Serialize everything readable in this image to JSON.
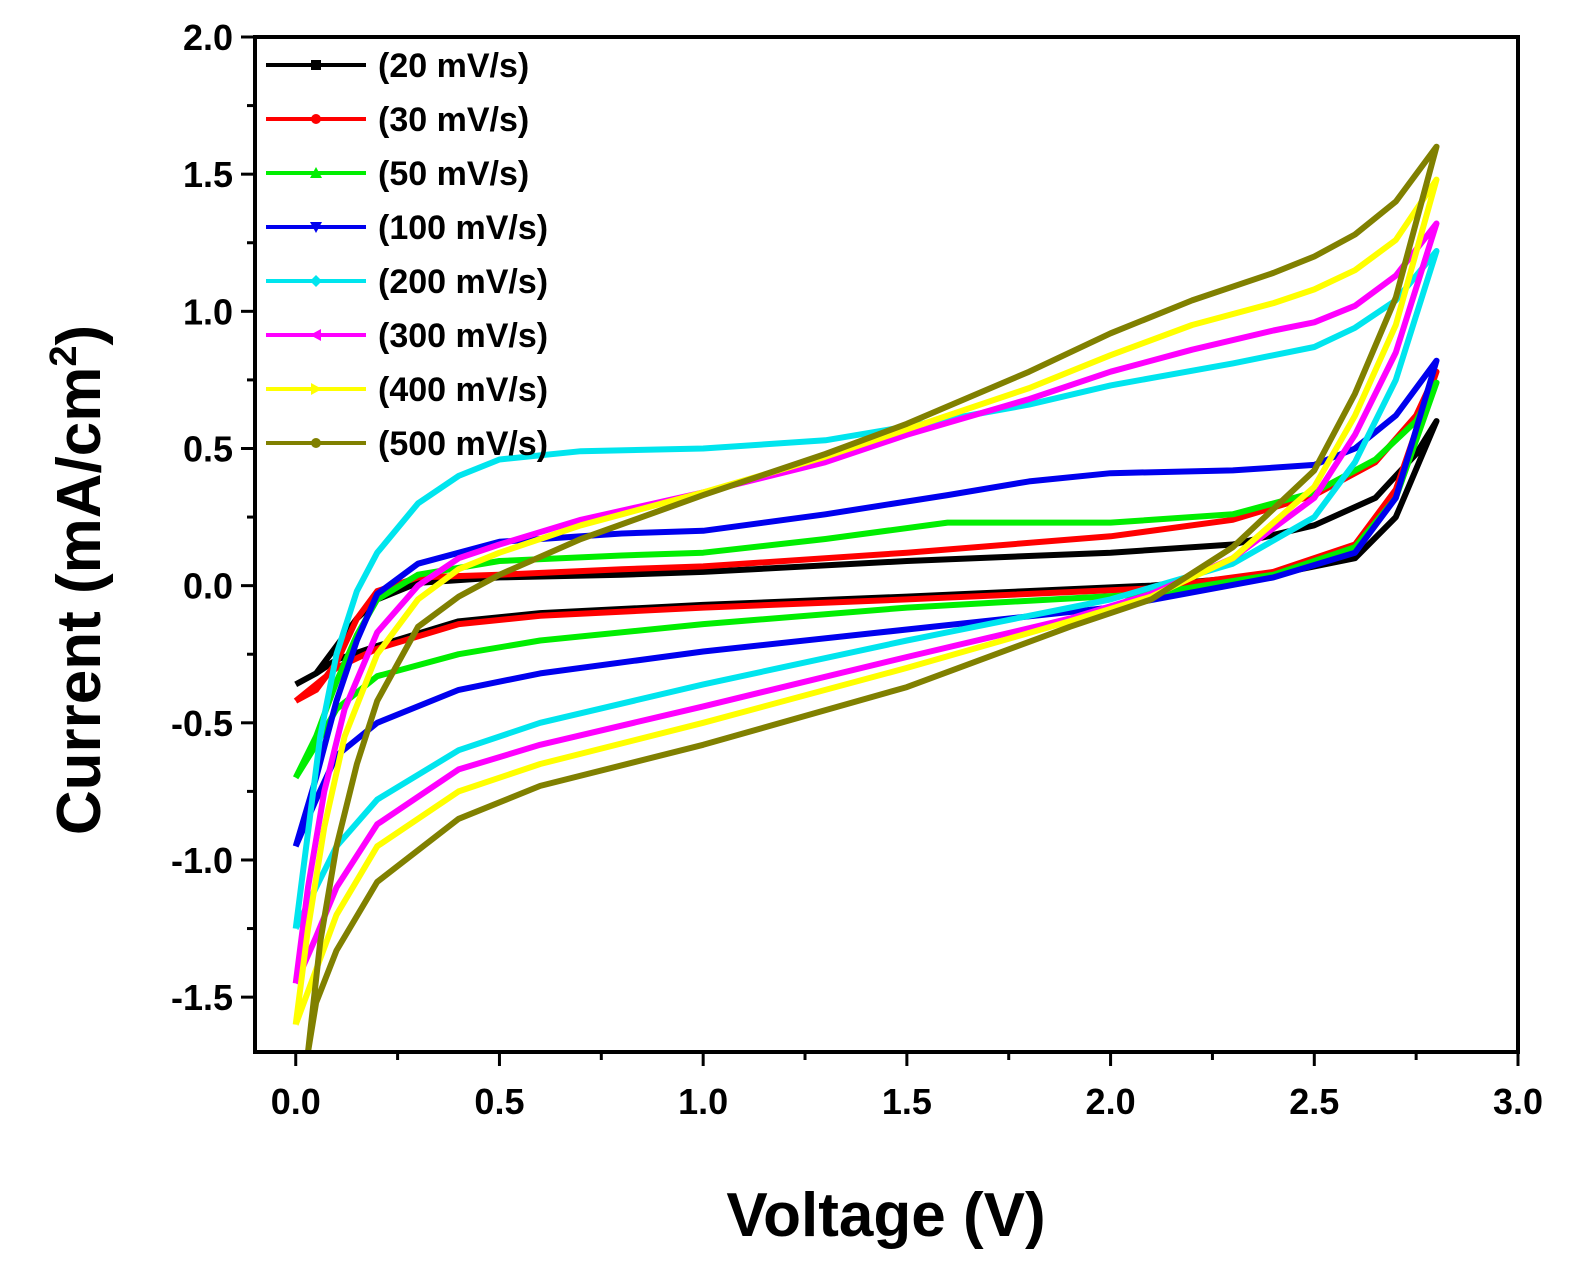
{
  "chart_data": {
    "type": "line",
    "title": "",
    "xlabel": "Voltage (V)",
    "ylabel_main": "Current (mA/cm",
    "ylabel_sup": "2",
    "ylabel_close": ")",
    "xlim": [
      -0.1,
      3.0
    ],
    "ylim": [
      -1.7,
      2.0
    ],
    "xticks": [
      0.0,
      0.5,
      1.0,
      1.5,
      2.0,
      2.5,
      3.0
    ],
    "xtick_labels": [
      "0.0",
      "0.5",
      "1.0",
      "1.5",
      "2.0",
      "2.5",
      "3.0"
    ],
    "yticks": [
      -1.5,
      -1.0,
      -0.5,
      0.0,
      0.5,
      1.0,
      1.5,
      2.0
    ],
    "ytick_labels": [
      "-1.5",
      "-1.0",
      "-0.5",
      "0.0",
      "0.5",
      "1.0",
      "1.5",
      "2.0"
    ],
    "legend_position": "top-left",
    "series": [
      {
        "name": "(20 mV/s)",
        "color": "#000000",
        "marker": "square",
        "upper": [
          [
            0.0,
            -0.36
          ],
          [
            0.05,
            -0.32
          ],
          [
            0.1,
            -0.22
          ],
          [
            0.15,
            -0.12
          ],
          [
            0.2,
            -0.05
          ],
          [
            0.3,
            0.01
          ],
          [
            0.5,
            0.03
          ],
          [
            0.8,
            0.04
          ],
          [
            1.0,
            0.05
          ],
          [
            1.5,
            0.09
          ],
          [
            2.0,
            0.12
          ],
          [
            2.3,
            0.15
          ],
          [
            2.5,
            0.22
          ],
          [
            2.65,
            0.32
          ],
          [
            2.75,
            0.48
          ],
          [
            2.8,
            0.6
          ]
        ],
        "lower": [
          [
            2.8,
            0.6
          ],
          [
            2.7,
            0.25
          ],
          [
            2.6,
            0.1
          ],
          [
            2.4,
            0.04
          ],
          [
            2.1,
            0.0
          ],
          [
            1.5,
            -0.04
          ],
          [
            1.0,
            -0.07
          ],
          [
            0.6,
            -0.1
          ],
          [
            0.4,
            -0.13
          ],
          [
            0.2,
            -0.22
          ],
          [
            0.1,
            -0.27
          ],
          [
            0.05,
            -0.32
          ],
          [
            0.0,
            -0.36
          ]
        ]
      },
      {
        "name": "(30 mV/s)",
        "color": "#ff0000",
        "marker": "circle",
        "upper": [
          [
            0.0,
            -0.42
          ],
          [
            0.05,
            -0.38
          ],
          [
            0.1,
            -0.28
          ],
          [
            0.15,
            -0.12
          ],
          [
            0.2,
            -0.02
          ],
          [
            0.3,
            0.03
          ],
          [
            0.5,
            0.04
          ],
          [
            0.8,
            0.06
          ],
          [
            1.0,
            0.07
          ],
          [
            1.5,
            0.12
          ],
          [
            2.0,
            0.18
          ],
          [
            2.3,
            0.24
          ],
          [
            2.5,
            0.33
          ],
          [
            2.65,
            0.45
          ],
          [
            2.75,
            0.62
          ],
          [
            2.8,
            0.78
          ]
        ],
        "lower": [
          [
            2.8,
            0.78
          ],
          [
            2.7,
            0.35
          ],
          [
            2.6,
            0.15
          ],
          [
            2.4,
            0.05
          ],
          [
            2.1,
            -0.01
          ],
          [
            1.5,
            -0.05
          ],
          [
            1.0,
            -0.08
          ],
          [
            0.6,
            -0.11
          ],
          [
            0.4,
            -0.14
          ],
          [
            0.2,
            -0.23
          ],
          [
            0.1,
            -0.3
          ],
          [
            0.05,
            -0.36
          ],
          [
            0.0,
            -0.42
          ]
        ]
      },
      {
        "name": "(50 mV/s)",
        "color": "#00ee00",
        "marker": "triangle-up",
        "upper": [
          [
            0.0,
            -0.7
          ],
          [
            0.05,
            -0.55
          ],
          [
            0.1,
            -0.35
          ],
          [
            0.15,
            -0.18
          ],
          [
            0.2,
            -0.05
          ],
          [
            0.3,
            0.04
          ],
          [
            0.5,
            0.09
          ],
          [
            0.8,
            0.11
          ],
          [
            1.0,
            0.12
          ],
          [
            1.3,
            0.17
          ],
          [
            1.6,
            0.23
          ],
          [
            2.0,
            0.23
          ],
          [
            2.3,
            0.26
          ],
          [
            2.5,
            0.34
          ],
          [
            2.65,
            0.46
          ],
          [
            2.75,
            0.6
          ],
          [
            2.8,
            0.74
          ]
        ],
        "lower": [
          [
            2.8,
            0.74
          ],
          [
            2.7,
            0.32
          ],
          [
            2.6,
            0.14
          ],
          [
            2.4,
            0.04
          ],
          [
            2.1,
            -0.03
          ],
          [
            1.5,
            -0.08
          ],
          [
            1.0,
            -0.14
          ],
          [
            0.6,
            -0.2
          ],
          [
            0.4,
            -0.25
          ],
          [
            0.2,
            -0.33
          ],
          [
            0.1,
            -0.45
          ],
          [
            0.05,
            -0.58
          ],
          [
            0.0,
            -0.7
          ]
        ]
      },
      {
        "name": "(100 mV/s)",
        "color": "#0000ee",
        "marker": "triangle-down",
        "upper": [
          [
            0.0,
            -0.95
          ],
          [
            0.05,
            -0.7
          ],
          [
            0.1,
            -0.42
          ],
          [
            0.15,
            -0.2
          ],
          [
            0.2,
            -0.03
          ],
          [
            0.3,
            0.08
          ],
          [
            0.5,
            0.16
          ],
          [
            0.8,
            0.19
          ],
          [
            1.0,
            0.2
          ],
          [
            1.3,
            0.26
          ],
          [
            1.6,
            0.33
          ],
          [
            1.8,
            0.38
          ],
          [
            2.0,
            0.41
          ],
          [
            2.3,
            0.42
          ],
          [
            2.5,
            0.44
          ],
          [
            2.6,
            0.5
          ],
          [
            2.7,
            0.62
          ],
          [
            2.8,
            0.82
          ]
        ],
        "lower": [
          [
            2.8,
            0.82
          ],
          [
            2.7,
            0.32
          ],
          [
            2.6,
            0.12
          ],
          [
            2.4,
            0.03
          ],
          [
            2.0,
            -0.08
          ],
          [
            1.5,
            -0.16
          ],
          [
            1.0,
            -0.24
          ],
          [
            0.6,
            -0.32
          ],
          [
            0.4,
            -0.38
          ],
          [
            0.2,
            -0.5
          ],
          [
            0.1,
            -0.62
          ],
          [
            0.05,
            -0.78
          ],
          [
            0.0,
            -0.95
          ]
        ]
      },
      {
        "name": "(200 mV/s)",
        "color": "#00e5ee",
        "marker": "diamond",
        "upper": [
          [
            0.0,
            -1.25
          ],
          [
            0.03,
            -0.9
          ],
          [
            0.06,
            -0.55
          ],
          [
            0.1,
            -0.25
          ],
          [
            0.15,
            -0.02
          ],
          [
            0.2,
            0.12
          ],
          [
            0.3,
            0.3
          ],
          [
            0.4,
            0.4
          ],
          [
            0.5,
            0.46
          ],
          [
            0.7,
            0.49
          ],
          [
            1.0,
            0.5
          ],
          [
            1.3,
            0.53
          ],
          [
            1.5,
            0.58
          ],
          [
            1.8,
            0.66
          ],
          [
            2.0,
            0.73
          ],
          [
            2.3,
            0.81
          ],
          [
            2.5,
            0.87
          ],
          [
            2.6,
            0.94
          ],
          [
            2.7,
            1.04
          ],
          [
            2.8,
            1.22
          ]
        ],
        "lower": [
          [
            2.8,
            1.22
          ],
          [
            2.7,
            0.75
          ],
          [
            2.6,
            0.45
          ],
          [
            2.5,
            0.25
          ],
          [
            2.3,
            0.08
          ],
          [
            2.0,
            -0.05
          ],
          [
            1.5,
            -0.2
          ],
          [
            1.0,
            -0.36
          ],
          [
            0.6,
            -0.5
          ],
          [
            0.4,
            -0.6
          ],
          [
            0.2,
            -0.78
          ],
          [
            0.1,
            -0.95
          ],
          [
            0.05,
            -1.1
          ],
          [
            0.0,
            -1.25
          ]
        ]
      },
      {
        "name": "(300 mV/s)",
        "color": "#ff00ff",
        "marker": "triangle-left",
        "upper": [
          [
            0.0,
            -1.45
          ],
          [
            0.03,
            -1.1
          ],
          [
            0.07,
            -0.75
          ],
          [
            0.12,
            -0.45
          ],
          [
            0.2,
            -0.17
          ],
          [
            0.3,
            0.0
          ],
          [
            0.4,
            0.1
          ],
          [
            0.5,
            0.15
          ],
          [
            0.7,
            0.24
          ],
          [
            1.0,
            0.34
          ],
          [
            1.3,
            0.45
          ],
          [
            1.5,
            0.55
          ],
          [
            1.8,
            0.68
          ],
          [
            2.0,
            0.78
          ],
          [
            2.2,
            0.86
          ],
          [
            2.4,
            0.93
          ],
          [
            2.5,
            0.96
          ],
          [
            2.6,
            1.02
          ],
          [
            2.7,
            1.13
          ],
          [
            2.8,
            1.32
          ]
        ],
        "lower": [
          [
            2.8,
            1.32
          ],
          [
            2.7,
            0.85
          ],
          [
            2.6,
            0.55
          ],
          [
            2.5,
            0.32
          ],
          [
            2.3,
            0.1
          ],
          [
            2.1,
            -0.03
          ],
          [
            1.9,
            -0.12
          ],
          [
            1.5,
            -0.26
          ],
          [
            1.0,
            -0.44
          ],
          [
            0.6,
            -0.58
          ],
          [
            0.4,
            -0.67
          ],
          [
            0.2,
            -0.87
          ],
          [
            0.1,
            -1.1
          ],
          [
            0.05,
            -1.28
          ],
          [
            0.0,
            -1.45
          ]
        ]
      },
      {
        "name": "(400 mV/s)",
        "color": "#ffff00",
        "marker": "triangle-right",
        "upper": [
          [
            0.0,
            -1.6
          ],
          [
            0.03,
            -1.25
          ],
          [
            0.07,
            -0.88
          ],
          [
            0.12,
            -0.55
          ],
          [
            0.2,
            -0.25
          ],
          [
            0.3,
            -0.05
          ],
          [
            0.4,
            0.06
          ],
          [
            0.5,
            0.12
          ],
          [
            0.7,
            0.22
          ],
          [
            1.0,
            0.34
          ],
          [
            1.3,
            0.47
          ],
          [
            1.5,
            0.57
          ],
          [
            1.8,
            0.72
          ],
          [
            2.0,
            0.84
          ],
          [
            2.2,
            0.95
          ],
          [
            2.4,
            1.03
          ],
          [
            2.5,
            1.08
          ],
          [
            2.6,
            1.15
          ],
          [
            2.7,
            1.26
          ],
          [
            2.8,
            1.48
          ]
        ],
        "lower": [
          [
            2.8,
            1.48
          ],
          [
            2.7,
            0.95
          ],
          [
            2.6,
            0.62
          ],
          [
            2.5,
            0.36
          ],
          [
            2.3,
            0.1
          ],
          [
            2.1,
            -0.04
          ],
          [
            1.9,
            -0.13
          ],
          [
            1.5,
            -0.3
          ],
          [
            1.0,
            -0.5
          ],
          [
            0.6,
            -0.65
          ],
          [
            0.4,
            -0.75
          ],
          [
            0.2,
            -0.95
          ],
          [
            0.1,
            -1.2
          ],
          [
            0.05,
            -1.4
          ],
          [
            0.0,
            -1.6
          ]
        ]
      },
      {
        "name": "(500 mV/s)",
        "color": "#808000",
        "marker": "circle",
        "upper": [
          [
            0.03,
            -1.7
          ],
          [
            0.06,
            -1.3
          ],
          [
            0.1,
            -0.95
          ],
          [
            0.15,
            -0.65
          ],
          [
            0.2,
            -0.42
          ],
          [
            0.3,
            -0.15
          ],
          [
            0.4,
            -0.04
          ],
          [
            0.5,
            0.04
          ],
          [
            0.7,
            0.17
          ],
          [
            1.0,
            0.33
          ],
          [
            1.3,
            0.48
          ],
          [
            1.5,
            0.59
          ],
          [
            1.8,
            0.78
          ],
          [
            2.0,
            0.92
          ],
          [
            2.2,
            1.04
          ],
          [
            2.4,
            1.14
          ],
          [
            2.5,
            1.2
          ],
          [
            2.6,
            1.28
          ],
          [
            2.7,
            1.4
          ],
          [
            2.8,
            1.6
          ]
        ],
        "lower": [
          [
            2.8,
            1.6
          ],
          [
            2.7,
            1.05
          ],
          [
            2.6,
            0.7
          ],
          [
            2.5,
            0.42
          ],
          [
            2.3,
            0.14
          ],
          [
            2.1,
            -0.05
          ],
          [
            1.9,
            -0.15
          ],
          [
            1.5,
            -0.37
          ],
          [
            1.0,
            -0.58
          ],
          [
            0.6,
            -0.73
          ],
          [
            0.4,
            -0.85
          ],
          [
            0.2,
            -1.08
          ],
          [
            0.1,
            -1.33
          ],
          [
            0.05,
            -1.52
          ],
          [
            0.03,
            -1.7
          ]
        ]
      }
    ]
  }
}
